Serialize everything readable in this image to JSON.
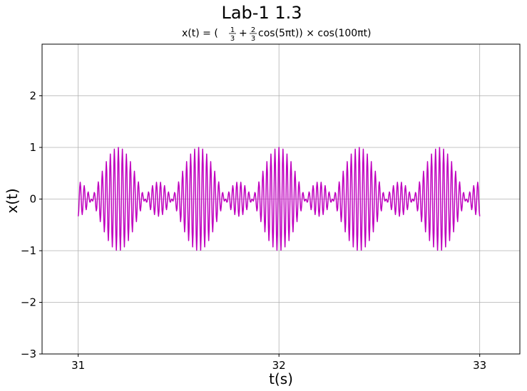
{
  "figure": {
    "suptitle": "Lab-1 1.3",
    "subtitle": {
      "lhs": "x(t) = (",
      "frac1_num": "1",
      "frac1_den": "3",
      "plus": "+",
      "frac2_num": "2",
      "frac2_den": "3",
      "mid": "cos(5πt)) × cos(100πt)"
    }
  },
  "chart_data": {
    "type": "line",
    "title": "Lab-1 1.3",
    "subtitle": "x(t) = (1/3 + 2/3 cos(5πt)) × cos(100πt)",
    "xlabel": "t(s)",
    "ylabel": "x(t)",
    "xlim": [
      30.82,
      33.2
    ],
    "ylim": [
      -3,
      3
    ],
    "x_range": [
      31,
      33
    ],
    "sample_step": 0.0025,
    "xticks": [
      31,
      32,
      33
    ],
    "xtick_labels": [
      "31",
      "32",
      "33"
    ],
    "yticks": [
      -3,
      -2,
      -1,
      0,
      1,
      2
    ],
    "ytick_labels": [
      "−3",
      "−2",
      "−1",
      "0",
      "1",
      "2"
    ],
    "grid": true,
    "series": [
      {
        "expression": "(1/3 + 2/3*cos(5*pi*t)) * cos(100*pi*t)",
        "color": "#bf00bf"
      }
    ]
  }
}
